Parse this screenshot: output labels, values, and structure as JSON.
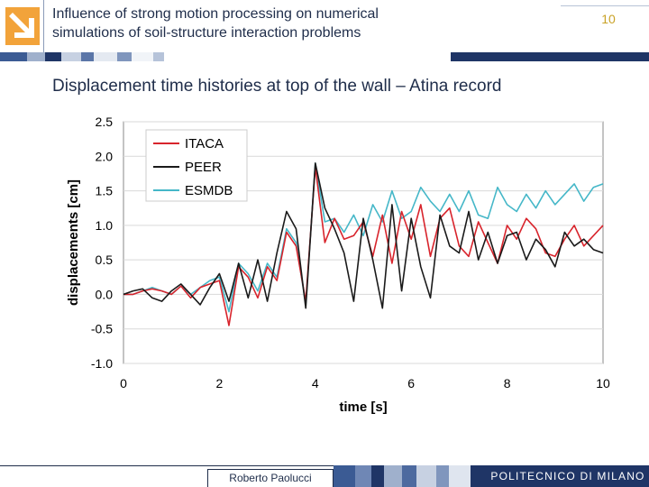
{
  "header": {
    "title_line1": "Influence of strong motion processing on numerical",
    "title_line2": "simulations of soil-structure interaction problems",
    "page_number": "10"
  },
  "subtitle": "Displacement time histories at top of the wall – Atina record",
  "footer": {
    "author": "Roberto Paolucci",
    "institution": "POLITECNICO DI MILANO"
  },
  "colors": {
    "navy": "#1f3566",
    "logo_orange": "#f2a33a",
    "itaca": "#d8242c",
    "peer": "#1a1a1a",
    "esmdb": "#45b7c8"
  },
  "chart_data": {
    "type": "line",
    "xlabel": "time [s]",
    "ylabel": "displacements [cm]",
    "xlim": [
      0,
      10
    ],
    "ylim": [
      -1.0,
      2.5
    ],
    "xticks": [
      "0",
      "2",
      "4",
      "6",
      "8",
      "10"
    ],
    "yticks": [
      "2.5",
      "2.0",
      "1.5",
      "1.0",
      "0.5",
      "0.0",
      "-0.5",
      "-1.0"
    ],
    "grid": "horizontal",
    "legend_position": "top-left",
    "series": [
      {
        "name": "ITACA",
        "color": "#d8242c",
        "x": [
          0,
          0.2,
          0.4,
          0.6,
          0.8,
          1.0,
          1.2,
          1.4,
          1.6,
          1.8,
          2.0,
          2.2,
          2.4,
          2.6,
          2.8,
          3.0,
          3.2,
          3.4,
          3.6,
          3.8,
          4.0,
          4.2,
          4.4,
          4.6,
          4.8,
          5.0,
          5.2,
          5.4,
          5.6,
          5.8,
          6.0,
          6.2,
          6.4,
          6.6,
          6.8,
          7.0,
          7.2,
          7.4,
          7.6,
          7.8,
          8.0,
          8.2,
          8.4,
          8.6,
          8.8,
          9.0,
          9.2,
          9.4,
          9.6,
          9.8,
          10.0
        ],
        "y": [
          0.0,
          0.0,
          0.05,
          0.08,
          0.05,
          0.0,
          0.12,
          -0.05,
          0.1,
          0.15,
          0.2,
          -0.45,
          0.4,
          0.25,
          -0.05,
          0.4,
          0.2,
          0.9,
          0.7,
          -0.1,
          1.85,
          0.75,
          1.1,
          0.8,
          0.85,
          1.05,
          0.55,
          1.15,
          0.45,
          1.2,
          0.8,
          1.3,
          0.55,
          1.1,
          1.25,
          0.7,
          0.55,
          1.05,
          0.75,
          0.45,
          1.0,
          0.8,
          1.1,
          0.95,
          0.6,
          0.55,
          0.8,
          1.0,
          0.7,
          0.85,
          1.0
        ]
      },
      {
        "name": "PEER",
        "color": "#1a1a1a",
        "x": [
          0,
          0.2,
          0.4,
          0.6,
          0.8,
          1.0,
          1.2,
          1.4,
          1.6,
          1.8,
          2.0,
          2.2,
          2.4,
          2.6,
          2.8,
          3.0,
          3.2,
          3.4,
          3.6,
          3.8,
          4.0,
          4.2,
          4.4,
          4.6,
          4.8,
          5.0,
          5.2,
          5.4,
          5.6,
          5.8,
          6.0,
          6.2,
          6.4,
          6.6,
          6.8,
          7.0,
          7.2,
          7.4,
          7.6,
          7.8,
          8.0,
          8.2,
          8.4,
          8.6,
          8.8,
          9.0,
          9.2,
          9.4,
          9.6,
          9.8,
          10.0
        ],
        "y": [
          0.0,
          0.05,
          0.08,
          -0.05,
          -0.1,
          0.05,
          0.15,
          0.0,
          -0.15,
          0.1,
          0.3,
          -0.1,
          0.45,
          -0.05,
          0.5,
          -0.1,
          0.6,
          1.2,
          0.95,
          -0.2,
          1.9,
          1.25,
          0.95,
          0.6,
          -0.1,
          1.1,
          0.5,
          -0.2,
          1.3,
          0.05,
          1.1,
          0.4,
          -0.05,
          1.15,
          0.7,
          0.6,
          1.2,
          0.5,
          0.9,
          0.45,
          0.85,
          0.9,
          0.5,
          0.8,
          0.65,
          0.4,
          0.9,
          0.7,
          0.8,
          0.65,
          0.6
        ]
      },
      {
        "name": "ESMDB",
        "color": "#45b7c8",
        "x": [
          0,
          0.2,
          0.4,
          0.6,
          0.8,
          1.0,
          1.2,
          1.4,
          1.6,
          1.8,
          2.0,
          2.2,
          2.4,
          2.6,
          2.8,
          3.0,
          3.2,
          3.4,
          3.6,
          3.8,
          4.0,
          4.2,
          4.4,
          4.6,
          4.8,
          5.0,
          5.2,
          5.4,
          5.6,
          5.8,
          6.0,
          6.2,
          6.4,
          6.6,
          6.8,
          7.0,
          7.2,
          7.4,
          7.6,
          7.8,
          8.0,
          8.2,
          8.4,
          8.6,
          8.8,
          9.0,
          9.2,
          9.4,
          9.6,
          9.8,
          10.0
        ],
        "y": [
          0.0,
          0.0,
          0.05,
          0.1,
          0.05,
          0.0,
          0.12,
          0.0,
          0.1,
          0.2,
          0.25,
          -0.25,
          0.45,
          0.3,
          0.05,
          0.45,
          0.25,
          0.95,
          0.75,
          -0.15,
          1.9,
          1.05,
          1.1,
          0.9,
          1.15,
          0.85,
          1.3,
          1.05,
          1.5,
          1.1,
          1.2,
          1.55,
          1.35,
          1.2,
          1.45,
          1.2,
          1.5,
          1.15,
          1.1,
          1.55,
          1.3,
          1.2,
          1.45,
          1.25,
          1.5,
          1.3,
          1.45,
          1.6,
          1.35,
          1.55,
          1.6
        ]
      }
    ]
  }
}
